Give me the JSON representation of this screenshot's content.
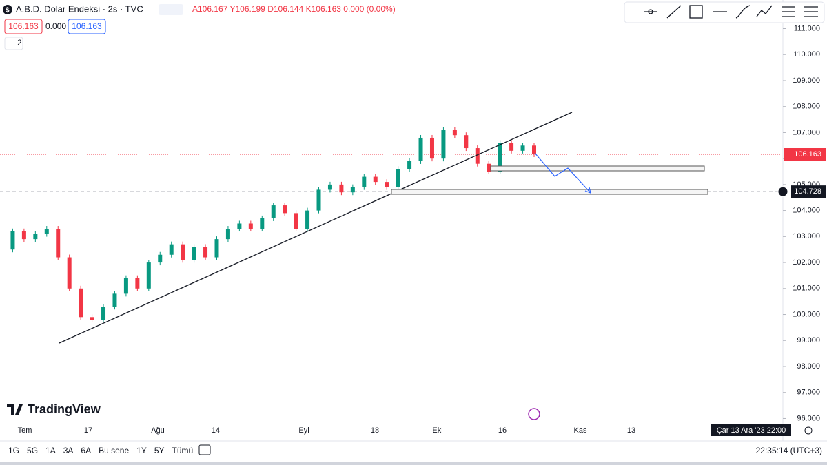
{
  "header": {
    "symbol": "A.B.D. Dolar Endeksi · 2s · TVC",
    "ohlc": "A106.167 Y106.199 D106.144 K106.163 0.000 (0.00%)",
    "bid": "106.163",
    "spread": "0.000",
    "ask": "106.163",
    "indicators": "2"
  },
  "chart_data": {
    "type": "candlestick",
    "values": [
      102.5,
      103.2,
      102.9,
      103.1,
      103.3,
      102.2,
      101.0,
      99.9,
      99.8,
      100.3,
      100.8,
      101.4,
      101.0,
      102.0,
      102.3,
      102.7,
      102.1,
      102.6,
      102.2,
      102.9,
      103.3,
      103.5,
      103.3,
      103.7,
      104.2,
      103.9,
      103.3,
      104.0,
      104.8,
      105.0,
      104.7,
      104.9,
      105.3,
      105.1,
      104.9,
      105.6,
      105.9,
      106.8,
      106.0,
      107.1,
      106.9,
      106.4,
      105.8,
      105.5,
      106.6,
      106.3,
      106.5,
      106.163
    ],
    "up_color": "#089981",
    "down_color": "#f23645",
    "ylim": [
      95.8,
      112.1
    ],
    "yticks": [
      {
        "value": 96,
        "label": "96.000"
      },
      {
        "value": 97,
        "label": "97.000"
      },
      {
        "value": 98,
        "label": "98.000"
      },
      {
        "value": 99,
        "label": "99.000"
      },
      {
        "value": 100,
        "label": "100.000"
      },
      {
        "value": 101,
        "label": "101.000"
      },
      {
        "value": 102,
        "label": "102.000"
      },
      {
        "value": 103,
        "label": "103.000"
      },
      {
        "value": 104,
        "label": "104.000"
      },
      {
        "value": 105,
        "label": "105.000"
      },
      {
        "value": 106,
        "label": "106.000"
      },
      {
        "value": 107,
        "label": "107.000"
      },
      {
        "value": 108,
        "label": "108.000"
      },
      {
        "value": 109,
        "label": "109.000"
      },
      {
        "value": 110,
        "label": "110.000"
      },
      {
        "value": 111,
        "label": "111.000"
      }
    ],
    "last_price": 106.163,
    "level": 104.728,
    "x_labels": [
      "Tem",
      "17",
      "Ağu",
      "14",
      "Eyl",
      "18",
      "Eki",
      "16",
      "Kas",
      "13"
    ],
    "crosshair_date": "Çar 13 Ara '23   22:00"
  },
  "branding": "TradingView",
  "footer": {
    "ranges": [
      "1G",
      "5G",
      "1A",
      "3A",
      "6A",
      "Bu sene",
      "1Y",
      "5Y",
      "Tümü"
    ],
    "clock": "22:35:14 (UTC+3)"
  }
}
